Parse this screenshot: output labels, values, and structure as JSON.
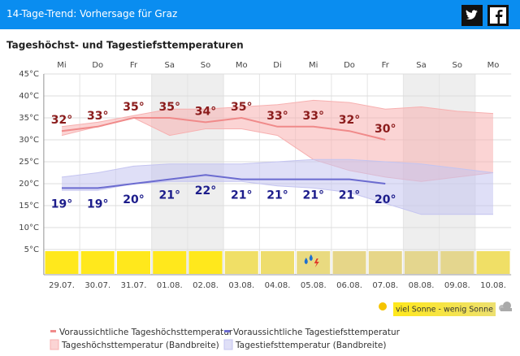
{
  "header": {
    "title": "14-Tage-Trend: Vorhersage für Graz"
  },
  "chart_data": {
    "type": "line",
    "title": "Tageshöchst- und Tagestiefsttemperaturen",
    "weekdays": [
      "Mi",
      "Do",
      "Fr",
      "Sa",
      "So",
      "Mo",
      "Di",
      "Mi",
      "Do",
      "Fr",
      "Sa",
      "So",
      "Mo"
    ],
    "categories": [
      "29.07.",
      "30.07.",
      "31.07.",
      "01.08.",
      "02.08.",
      "03.08.",
      "04.08.",
      "05.08.",
      "06.08.",
      "07.08.",
      "08.08.",
      "09.08.",
      "10.08."
    ],
    "ylim": [
      0,
      45
    ],
    "yticks": [
      {
        "value": 5,
        "label": "5°C"
      },
      {
        "value": 10,
        "label": "10°C"
      },
      {
        "value": 15,
        "label": "15°C"
      },
      {
        "value": 20,
        "label": "20°C"
      },
      {
        "value": 25,
        "label": "25°C"
      },
      {
        "value": 30,
        "label": "30°C"
      },
      {
        "value": 35,
        "label": "35°C"
      },
      {
        "value": 40,
        "label": "40°C"
      },
      {
        "value": 45,
        "label": "45°C"
      }
    ],
    "grid": true,
    "series": [
      {
        "name": "Voraussichtliche Tageshöchsttemperatur",
        "color": "#f08a8a",
        "values": [
          32,
          33,
          35,
          35,
          34,
          35,
          33,
          33,
          32,
          30,
          null,
          null,
          null
        ],
        "value_labels": [
          "32°",
          "33°",
          "35°",
          "35°",
          "34°",
          "35°",
          "33°",
          "33°",
          "32°",
          "30°",
          null,
          null,
          null
        ]
      },
      {
        "name": "Voraussichtliche Tagestiefsttemperatur",
        "color": "#6b6bd0",
        "values": [
          19,
          19,
          20,
          21,
          22,
          21,
          21,
          21,
          21,
          20,
          null,
          null,
          null
        ],
        "value_labels": [
          "19°",
          "19°",
          "20°",
          "21°",
          "22°",
          "21°",
          "21°",
          "21°",
          "21°",
          "20°",
          null,
          null,
          null
        ]
      }
    ],
    "bands": [
      {
        "name": "Tageshöchsttemperatur (Bandbreite)",
        "color": "#f7b0b0",
        "upper": [
          33,
          34,
          35.5,
          37,
          37,
          37.5,
          38,
          39,
          38.5,
          37,
          37.5,
          36.5,
          36
        ],
        "lower": [
          31,
          33,
          35,
          31,
          32.5,
          32.5,
          31,
          25.5,
          23,
          21.5,
          20.5,
          21.5,
          22.5
        ]
      },
      {
        "name": "Tagestiefsttemperatur (Bandbreite)",
        "color": "#c4c4f0",
        "upper": [
          21.5,
          22.5,
          24,
          24.5,
          24.5,
          24.5,
          25,
          25.5,
          25.5,
          25,
          24.5,
          23.5,
          22.5
        ],
        "lower": [
          18.5,
          18.5,
          20,
          20.5,
          20.5,
          20.5,
          19.5,
          19,
          18,
          15.5,
          13,
          13,
          13
        ]
      }
    ],
    "sun_colors": [
      "#ffe81c",
      "#ffe81c",
      "#ffe81c",
      "#ffe81c",
      "#ffe81c",
      "#f0df66",
      "#eedd6c",
      "#e9da80",
      "#e6d688",
      "#e6d688",
      "#e4d68e",
      "#e4d68e",
      "#f0df66"
    ],
    "sun_scale": "viel Sonne - wenig Sonne"
  }
}
